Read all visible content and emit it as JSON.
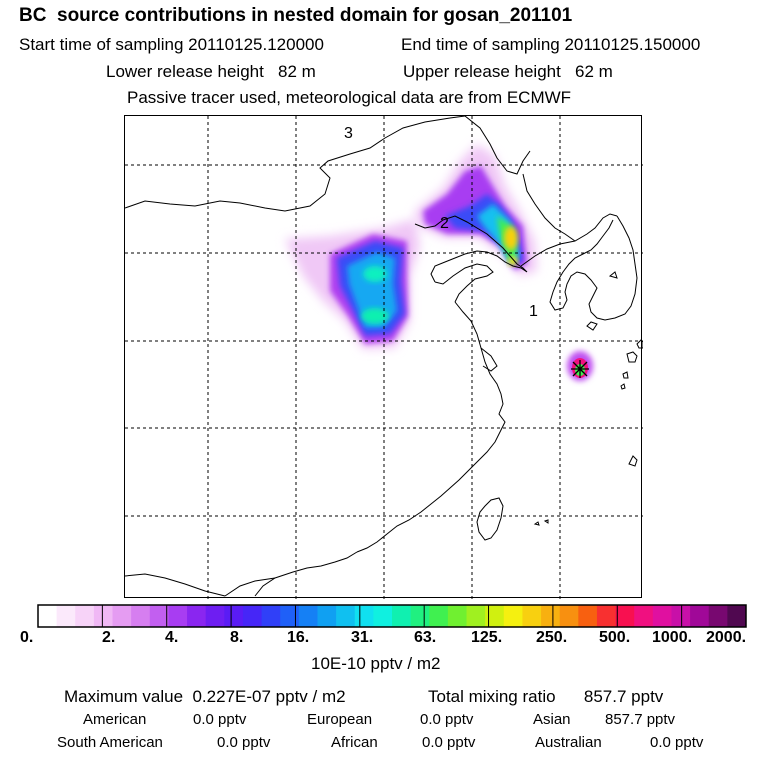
{
  "header": {
    "title": "BC  source contributions in nested domain for gosan_201101",
    "start_time": "Start time of sampling 20110125.120000",
    "end_time": "End time of sampling 20110125.150000",
    "lower_release": "Lower release height   82 m",
    "upper_release": "Upper release height   62 m",
    "tracer_note": "Passive tracer used, meteorological data are from ECMWF"
  },
  "map": {
    "region_labels": [
      "3",
      "2",
      "1"
    ],
    "receptor_marker": "receptor-star-icon",
    "coast_color": "#000000",
    "grid_color": "#000000"
  },
  "colorbar": {
    "colors": [
      "#ffffff",
      "#fbe9fb",
      "#f7d3f8",
      "#f0b8f5",
      "#e59cf2",
      "#d67ef0",
      "#c25ff0",
      "#a83df2",
      "#8a26f0",
      "#6e1ef2",
      "#5a1cf5",
      "#4626f7",
      "#3040f8",
      "#1f60f8",
      "#1580f5",
      "#10a0f2",
      "#10c0f0",
      "#10e0f0",
      "#10f0e0",
      "#10f0b0",
      "#20f080",
      "#40f050",
      "#70f030",
      "#a0f020",
      "#d0f010",
      "#f5f010",
      "#f8d010",
      "#f8b010",
      "#f89010",
      "#f86010",
      "#f83030",
      "#f81050",
      "#f01080",
      "#e010a0",
      "#c810a8",
      "#a00898",
      "#780870",
      "#500850"
    ],
    "ticks": [
      "0.",
      "2.",
      "4.",
      "8.",
      "16.",
      "31.",
      "63.",
      "125.",
      "250.",
      "500.",
      "1000.",
      "2000."
    ],
    "unit_label": "10E-10 pptv / m2"
  },
  "summary": {
    "max_value": "Maximum value  0.227E-07 pptv / m2",
    "total_mixing": "Total mixing ratio      857.7 pptv",
    "regions": [
      {
        "name": "American",
        "value": "0.0 pptv"
      },
      {
        "name": "European",
        "value": "0.0 pptv"
      },
      {
        "name": "Asian",
        "value": "857.7 pptv"
      },
      {
        "name": "South American",
        "value": "0.0 pptv"
      },
      {
        "name": "African",
        "value": "0.0 pptv"
      },
      {
        "name": "Australian",
        "value": "0.0 pptv"
      }
    ]
  }
}
